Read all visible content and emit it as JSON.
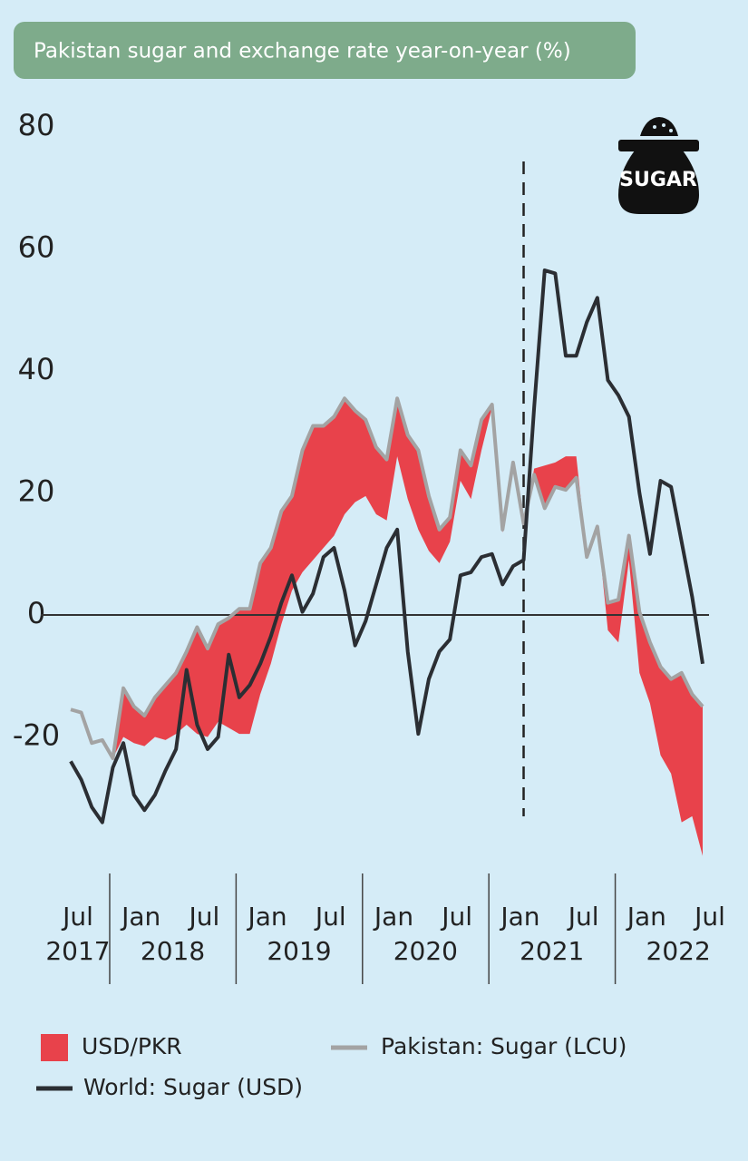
{
  "chart_data": {
    "type": "line",
    "title": "Pakistan sugar and exchange rate year-on-year (%)",
    "x": [
      "2017-07",
      "2017-08",
      "2017-09",
      "2017-10",
      "2017-11",
      "2017-12",
      "2018-01",
      "2018-02",
      "2018-03",
      "2018-04",
      "2018-05",
      "2018-06",
      "2018-07",
      "2018-08",
      "2018-09",
      "2018-10",
      "2018-11",
      "2018-12",
      "2019-01",
      "2019-02",
      "2019-03",
      "2019-04",
      "2019-05",
      "2019-06",
      "2019-07",
      "2019-08",
      "2019-09",
      "2019-10",
      "2019-11",
      "2019-12",
      "2020-01",
      "2020-02",
      "2020-03",
      "2020-04",
      "2020-05",
      "2020-06",
      "2020-07",
      "2020-08",
      "2020-09",
      "2020-10",
      "2020-11",
      "2020-12",
      "2021-01",
      "2021-02",
      "2021-03",
      "2021-04",
      "2021-05",
      "2021-06",
      "2021-07",
      "2021-08",
      "2021-09",
      "2021-10",
      "2021-11",
      "2021-12",
      "2022-01",
      "2022-02",
      "2022-03",
      "2022-04",
      "2022-05",
      "2022-06",
      "2022-07"
    ],
    "series": [
      {
        "name": "USD/PKR",
        "kind": "band",
        "base": "Pakistan: Sugar (LCU)",
        "color": "#e8424b",
        "values": [
          0,
          0,
          0,
          0,
          0,
          8,
          6,
          5,
          6.5,
          9,
          10,
          12,
          17.5,
          14.5,
          16,
          18,
          20.5,
          20.5,
          21.5,
          19,
          18.5,
          15.5,
          20,
          22,
          20,
          19.5,
          19,
          15,
          12.5,
          11,
          10,
          9.5,
          10.5,
          13,
          9,
          5.5,
          4,
          5,
          5.5,
          5,
          0.5,
          0.5,
          1.5,
          1,
          -1,
          -7,
          -4,
          -5.5,
          -3.5,
          -0.5,
          0,
          4.5,
          7,
          4,
          10,
          10,
          14.5,
          15.5,
          24.5,
          20,
          24.5
        ]
      },
      {
        "name": "Pakistan: Sugar (LCU)",
        "kind": "line",
        "color": "#a3a3a3",
        "values": [
          -15.5,
          -16,
          -21,
          -20.5,
          -23.5,
          -12,
          -15,
          -16.5,
          -13.5,
          -11.5,
          -9.5,
          -6,
          -2,
          -5.5,
          -1.5,
          -0.5,
          1,
          1,
          8.5,
          11,
          17,
          19.5,
          27,
          31,
          31,
          32.5,
          35.5,
          33.5,
          32,
          27.5,
          25.5,
          35.5,
          29.5,
          27,
          19.5,
          14,
          16,
          27,
          24.5,
          32,
          34.5,
          14,
          25,
          15,
          23,
          17.5,
          21,
          20.5,
          22.5,
          9.5,
          14.5,
          2,
          2.5,
          13,
          0.5,
          -4.5,
          -8.5,
          -10.5,
          -9.5,
          -13,
          -15
        ]
      },
      {
        "name": "World: Sugar (USD)",
        "kind": "line",
        "color": "#2b2e33",
        "values": [
          -24,
          -27,
          -31.5,
          -34,
          -25,
          -21,
          -29.5,
          -32,
          -29.5,
          -25.5,
          -22,
          -9,
          -18,
          -22,
          -20,
          -6.5,
          -13.5,
          -11.5,
          -8,
          -3.5,
          2,
          6.5,
          0.5,
          3.5,
          9.5,
          11,
          4,
          -5,
          -1,
          5,
          11,
          14,
          -6,
          -19.5,
          -10.5,
          -6,
          -4,
          6.5,
          7,
          9.5,
          10,
          5,
          8,
          9,
          34,
          56.5,
          56,
          42.5,
          42.5,
          48,
          52,
          38.5,
          36,
          32.5,
          20,
          10,
          22,
          21,
          12,
          3,
          -8
        ]
      }
    ],
    "xticks": [
      {
        "value": "2017-07",
        "label": "Jul"
      },
      {
        "value": "2018-01",
        "label": "Jan"
      },
      {
        "value": "2018-07",
        "label": "Jul"
      },
      {
        "value": "2019-01",
        "label": "Jan"
      },
      {
        "value": "2019-07",
        "label": "Jul"
      },
      {
        "value": "2020-01",
        "label": "Jan"
      },
      {
        "value": "2020-07",
        "label": "Jul"
      },
      {
        "value": "2021-01",
        "label": "Jan"
      },
      {
        "value": "2021-07",
        "label": "Jul"
      },
      {
        "value": "2022-01",
        "label": "Jan"
      },
      {
        "value": "2022-07",
        "label": "Jul"
      }
    ],
    "years": [
      "2017",
      "2018",
      "2019",
      "2020",
      "2021",
      "2022"
    ],
    "ylim": [
      -40,
      80
    ],
    "yticks": [
      -20,
      0,
      20,
      40,
      60,
      80
    ],
    "zero_line": true,
    "vline_x": "2021-02",
    "icon_label": "SUGAR"
  }
}
